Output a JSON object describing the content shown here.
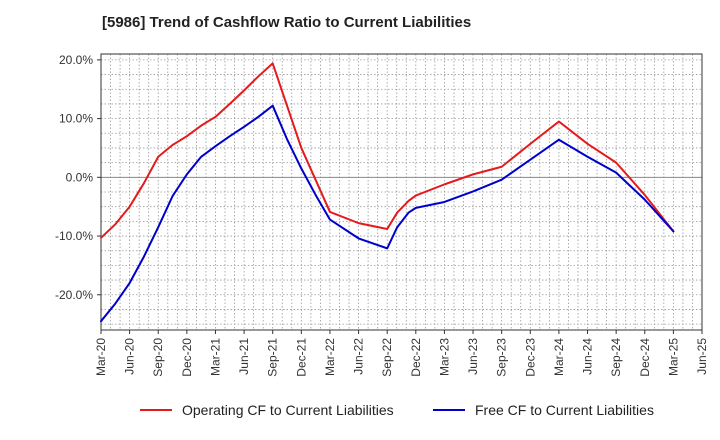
{
  "chart_data": {
    "type": "line",
    "title": "[5986]  Trend of Cashflow Ratio to Current Liabilities",
    "xlabel": "",
    "ylabel": "",
    "ylim": [
      -26,
      21
    ],
    "y_ticks": [
      {
        "value": 20,
        "label": "20.0%"
      },
      {
        "value": 10,
        "label": "10.0%"
      },
      {
        "value": 0,
        "label": "0.0%"
      },
      {
        "value": -10,
        "label": "-10.0%"
      },
      {
        "value": -20,
        "label": "-20.0%"
      }
    ],
    "x_tick_labels": [
      "Mar-20",
      "Jun-20",
      "Sep-20",
      "Dec-20",
      "Mar-21",
      "Jun-21",
      "Sep-21",
      "Dec-21",
      "Mar-22",
      "Jun-22",
      "Sep-22",
      "Dec-22",
      "Mar-23",
      "Jun-23",
      "Sep-23",
      "Dec-23",
      "Mar-24",
      "Jun-24",
      "Sep-24",
      "Dec-24",
      "Mar-25",
      "Jun-25"
    ],
    "grid": true,
    "legend_position": "bottom",
    "series": [
      {
        "name": "Operating CF to Current Liabilities",
        "color": "#e41a1c",
        "points": [
          [
            0,
            -10.3
          ],
          [
            0.5,
            -8.0
          ],
          [
            1,
            -5.0
          ],
          [
            1.5,
            -1.0
          ],
          [
            2,
            3.5
          ],
          [
            2.5,
            5.5
          ],
          [
            3,
            7.0
          ],
          [
            3.5,
            8.8
          ],
          [
            4,
            10.3
          ],
          [
            4.5,
            12.5
          ],
          [
            5,
            14.8
          ],
          [
            5.5,
            17.2
          ],
          [
            6,
            19.4
          ],
          [
            7,
            5.0
          ],
          [
            8,
            -5.9
          ],
          [
            9,
            -7.8
          ],
          [
            10,
            -8.8
          ],
          [
            10.35,
            -6.0
          ],
          [
            10.75,
            -4.0
          ],
          [
            11,
            -3.1
          ],
          [
            12,
            -1.2
          ],
          [
            13,
            0.5
          ],
          [
            14,
            1.8
          ],
          [
            15,
            5.7
          ],
          [
            16,
            9.5
          ],
          [
            17,
            5.7
          ],
          [
            18,
            2.5
          ],
          [
            19,
            -3.0
          ],
          [
            20,
            -9.2
          ]
        ]
      },
      {
        "name": "Free CF to Current Liabilities",
        "color": "#0000cc",
        "points": [
          [
            0,
            -24.5
          ],
          [
            0.5,
            -21.5
          ],
          [
            1,
            -18.0
          ],
          [
            1.5,
            -13.5
          ],
          [
            2,
            -8.5
          ],
          [
            2.5,
            -3.2
          ],
          [
            3,
            0.5
          ],
          [
            3.5,
            3.5
          ],
          [
            4,
            5.3
          ],
          [
            4.5,
            7.0
          ],
          [
            5,
            8.6
          ],
          [
            5.5,
            10.3
          ],
          [
            6,
            12.2
          ],
          [
            6.5,
            6.5
          ],
          [
            7,
            1.5
          ],
          [
            7.5,
            -3.0
          ],
          [
            8,
            -7.2
          ],
          [
            9,
            -10.4
          ],
          [
            10,
            -12.1
          ],
          [
            10.35,
            -8.5
          ],
          [
            10.75,
            -6.0
          ],
          [
            11,
            -5.2
          ],
          [
            12,
            -4.2
          ],
          [
            13,
            -2.4
          ],
          [
            14,
            -0.4
          ],
          [
            15,
            3.0
          ],
          [
            16,
            6.4
          ],
          [
            17,
            3.5
          ],
          [
            18,
            0.8
          ],
          [
            19,
            -3.8
          ],
          [
            20,
            -9.2
          ]
        ]
      }
    ]
  }
}
